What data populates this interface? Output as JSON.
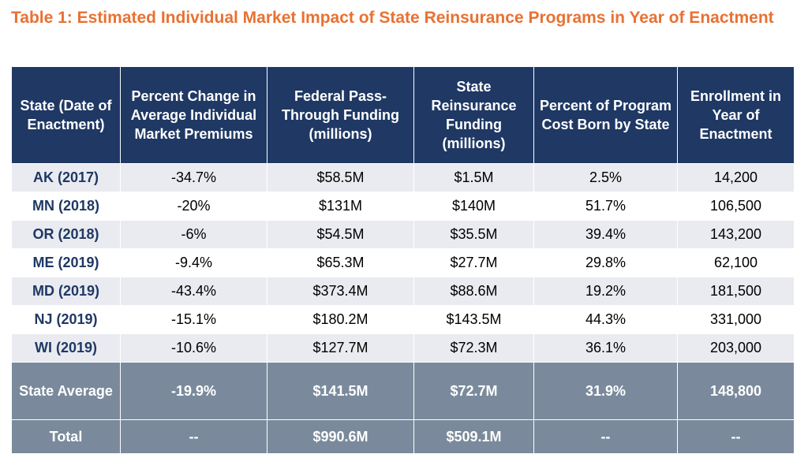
{
  "title": "Table 1: Estimated Individual Market Impact of State Reinsurance Programs in Year of Enactment",
  "columns": [
    "State (Date of Enactment)",
    "Percent Change in Average Individual Market Premiums",
    "Federal Pass-Through Funding (millions)",
    "State Reinsurance Funding (millions)",
    "Percent of Program Cost Born by State",
    "Enrollment in Year of Enactment"
  ],
  "rows": [
    [
      "AK (2017)",
      "-34.7%",
      "$58.5M",
      "$1.5M",
      "2.5%",
      "14,200"
    ],
    [
      "MN (2018)",
      "-20%",
      "$131M",
      "$140M",
      "51.7%",
      "106,500"
    ],
    [
      "OR (2018)",
      "-6%",
      "$54.5M",
      "$35.5M",
      "39.4%",
      "143,200"
    ],
    [
      "ME (2019)",
      "-9.4%",
      "$65.3M",
      "$27.7M",
      "29.8%",
      "62,100"
    ],
    [
      "MD (2019)",
      "-43.4%",
      "$373.4M",
      "$88.6M",
      "19.2%",
      "181,500"
    ],
    [
      "NJ (2019)",
      "-15.1%",
      "$180.2M",
      "$143.5M",
      "44.3%",
      "331,000"
    ],
    [
      "WI (2019)",
      "-10.6%",
      "$127.7M",
      "$72.3M",
      "36.1%",
      "203,000"
    ]
  ],
  "average": [
    "State Average",
    "-19.9%",
    "$141.5M",
    "$72.7M",
    "31.9%",
    "148,800"
  ],
  "total": [
    "Total",
    "--",
    "$990.6M",
    "$509.1M",
    "--",
    "--"
  ],
  "colors": {
    "title": "#E97132",
    "header_bg": "#1F3864",
    "row_alt_bg": "#E9EBF0",
    "footer_bg": "#7A8A9C"
  }
}
